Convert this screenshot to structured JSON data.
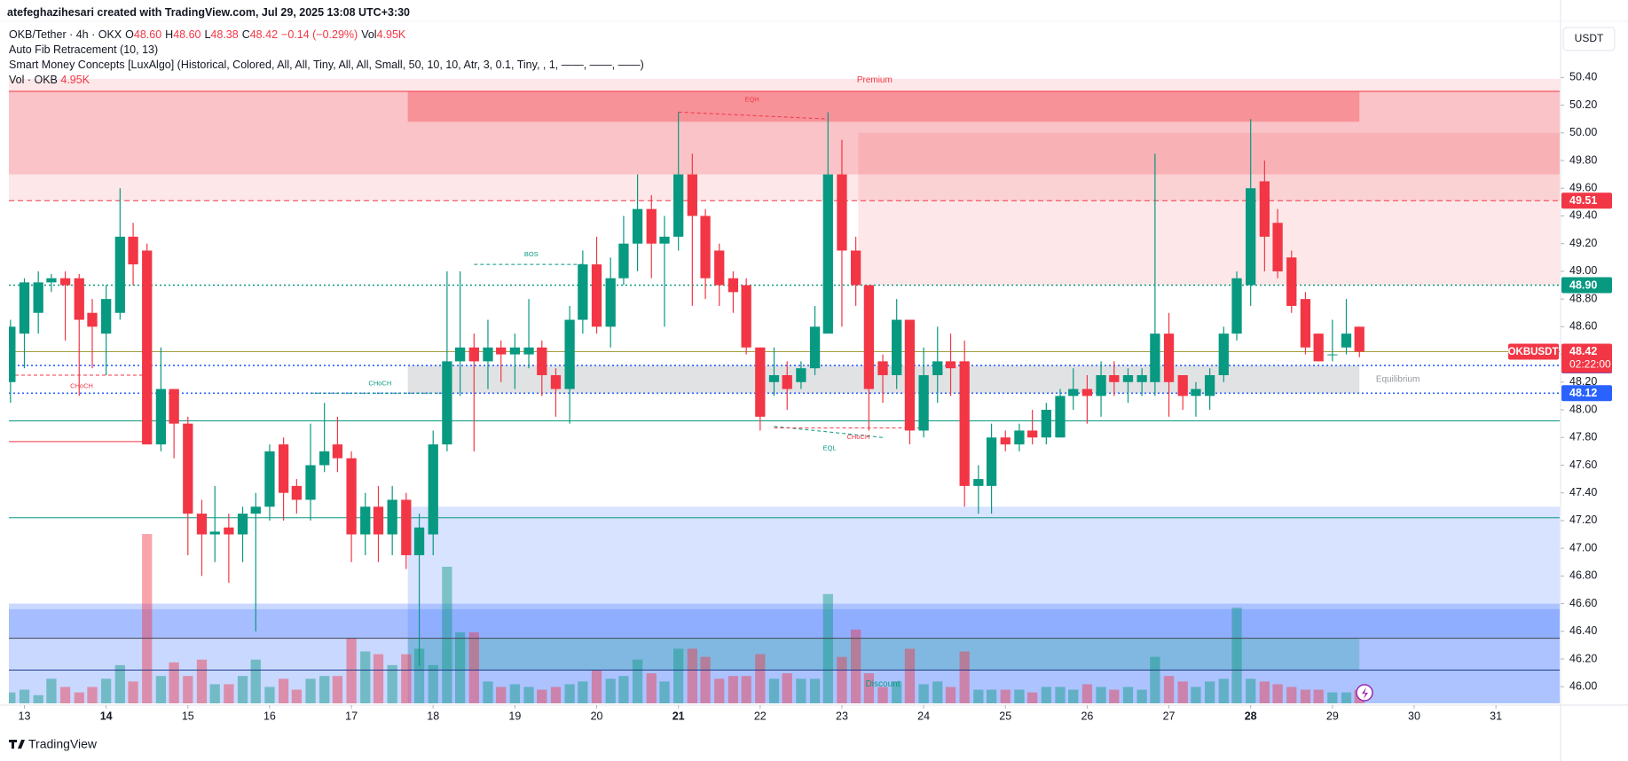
{
  "header": {
    "credit": "atefeghazihesari created with TradingView.com, Jul 29, 2025 13:08 UTC+3:30",
    "symbol": "OKB/Tether · 4h · OKX",
    "ohlc": [
      {
        "k": "O",
        "v": "48.60"
      },
      {
        "k": "H",
        "v": "48.60"
      },
      {
        "k": "L",
        "v": "48.38"
      },
      {
        "k": "C",
        "v": "48.42"
      }
    ],
    "change": "−0.14 (−0.29%)",
    "vol_key": "Vol",
    "vol": "4.95K",
    "indicators": [
      "Auto Fib Retracement (10, 13)",
      "Smart Money Concepts [LuxAlgo] (Historical, Colored, All, All, Tiny, All, All, Small, 50, 10, 10, Atr, 3, 0.1, Tiny, , 1, ——, ——, ——)"
    ],
    "volume_label": "Vol · OKB",
    "volume_value": "4.95K",
    "currency": "USDT",
    "brand": "TradingView"
  },
  "chart_data": {
    "type": "candlestick",
    "up_color": "#089981",
    "down_color": "#f23645",
    "grid": false,
    "xlim": [
      12.81,
      31.78
    ],
    "xticks": [
      13,
      14,
      15,
      16,
      17,
      18,
      19,
      20,
      21,
      22,
      23,
      24,
      25,
      26,
      27,
      28,
      29,
      30,
      31
    ],
    "ylim": [
      45.88,
      50.78
    ],
    "yticks": [
      {
        "value": 46,
        "label": "46.00"
      },
      {
        "value": 46.2,
        "label": "46.20"
      },
      {
        "value": 46.4,
        "label": "46.40"
      },
      {
        "value": 46.6,
        "label": "46.60"
      },
      {
        "value": 46.8,
        "label": "46.80"
      },
      {
        "value": 47,
        "label": "47.00"
      },
      {
        "value": 47.2,
        "label": "47.20"
      },
      {
        "value": 47.4,
        "label": "47.40"
      },
      {
        "value": 47.6,
        "label": "47.60"
      },
      {
        "value": 47.8,
        "label": "47.80"
      },
      {
        "value": 48,
        "label": "48.00"
      },
      {
        "value": 48.2,
        "label": "48.20"
      },
      {
        "value": 48.4,
        "label": "48.40"
      },
      {
        "value": 48.6,
        "label": "48.60"
      },
      {
        "value": 48.8,
        "label": "48.80"
      },
      {
        "value": 49,
        "label": "49.00"
      },
      {
        "value": 49.2,
        "label": "49.20"
      },
      {
        "value": 49.4,
        "label": "49.40"
      },
      {
        "value": 49.6,
        "label": "49.60"
      },
      {
        "value": 49.8,
        "label": "49.80"
      },
      {
        "value": 50,
        "label": "50.00"
      },
      {
        "value": 50.2,
        "label": "50.20"
      },
      {
        "value": 50.4,
        "label": "50.40"
      }
    ],
    "x": [
      12.83,
      13,
      13.17,
      13.33,
      13.5,
      13.67,
      13.83,
      14,
      14.17,
      14.33,
      14.5,
      14.67,
      14.83,
      15,
      15.17,
      15.33,
      15.5,
      15.67,
      15.83,
      16,
      16.17,
      16.33,
      16.5,
      16.67,
      16.83,
      17,
      17.17,
      17.33,
      17.5,
      17.67,
      17.83,
      18,
      18.17,
      18.33,
      18.5,
      18.67,
      18.83,
      19,
      19.17,
      19.33,
      19.5,
      19.67,
      19.83,
      20,
      20.17,
      20.33,
      20.5,
      20.67,
      20.83,
      21,
      21.17,
      21.33,
      21.5,
      21.67,
      21.83,
      22,
      22.17,
      22.33,
      22.5,
      22.67,
      22.83,
      23,
      23.17,
      23.33,
      23.5,
      23.67,
      23.83,
      24,
      24.17,
      24.33,
      24.5,
      24.67,
      24.83,
      25,
      25.17,
      25.33,
      25.5,
      25.67,
      25.83,
      26,
      26.17,
      26.33,
      26.5,
      26.67,
      26.83,
      27,
      27.17,
      27.33,
      27.5,
      27.67,
      27.83,
      28,
      28.17,
      28.33,
      28.5,
      28.67,
      28.83,
      29,
      29.17,
      29.33
    ],
    "open": [
      48.2,
      48.55,
      48.7,
      48.92,
      48.95,
      48.95,
      48.7,
      48.55,
      48.7,
      49.25,
      49.15,
      47.75,
      48.15,
      47.9,
      47.25,
      47.1,
      47.15,
      47.1,
      47.25,
      47.3,
      47.75,
      47.45,
      47.35,
      47.6,
      47.75,
      47.65,
      47.1,
      47.3,
      47.1,
      47.35,
      46.95,
      47.1,
      47.75,
      48.35,
      48.45,
      48.35,
      48.45,
      48.4,
      48.4,
      48.45,
      48.25,
      48.15,
      48.65,
      49.05,
      48.6,
      48.95,
      49.2,
      49.45,
      49.2,
      49.25,
      49.7,
      49.4,
      49.15,
      48.95,
      48.9,
      48.45,
      48.2,
      48.25,
      48.2,
      48.3,
      48.55,
      49.7,
      49.15,
      48.9,
      48.35,
      48.25,
      48.65,
      47.85,
      48.25,
      48.35,
      48.35,
      47.45,
      47.45,
      47.8,
      47.75,
      47.85,
      47.8,
      47.8,
      48.1,
      48.15,
      48.1,
      48.25,
      48.2,
      48.2,
      48.2,
      48.55,
      48.25,
      48.1,
      48.1,
      48.25,
      48.55,
      48.9,
      49.65,
      49.35,
      49.1,
      48.8,
      48.55,
      48.4,
      48.45,
      48.6
    ],
    "high": [
      48.65,
      48.95,
      49.0,
      48.98,
      49.0,
      48.98,
      48.8,
      48.9,
      49.6,
      49.35,
      49.2,
      48.45,
      48.15,
      47.95,
      47.35,
      47.45,
      47.25,
      47.3,
      47.4,
      47.75,
      47.8,
      47.5,
      47.9,
      48.05,
      47.95,
      47.7,
      47.4,
      47.45,
      47.45,
      47.4,
      47.25,
      47.85,
      49.0,
      49.0,
      48.55,
      48.65,
      48.5,
      48.55,
      48.8,
      48.5,
      48.3,
      48.75,
      49.15,
      49.25,
      49.1,
      49.4,
      49.7,
      49.55,
      49.4,
      50.15,
      49.85,
      49.45,
      49.2,
      49.0,
      48.95,
      48.45,
      48.45,
      48.35,
      48.35,
      48.75,
      50.15,
      49.95,
      49.25,
      48.9,
      48.4,
      48.8,
      48.65,
      48.45,
      48.6,
      48.55,
      48.5,
      47.6,
      47.9,
      47.85,
      47.9,
      48.0,
      48.05,
      48.15,
      48.3,
      48.25,
      48.35,
      48.35,
      48.3,
      48.3,
      49.85,
      48.7,
      48.25,
      48.2,
      48.3,
      48.6,
      49.0,
      50.1,
      49.8,
      49.45,
      49.15,
      48.85,
      48.55,
      48.65,
      48.8,
      48.6
    ],
    "low": [
      48.05,
      48.3,
      48.55,
      48.85,
      48.5,
      48.1,
      48.3,
      48.25,
      48.65,
      48.9,
      47.75,
      47.7,
      47.65,
      46.95,
      46.8,
      46.9,
      46.75,
      46.9,
      46.4,
      47.2,
      47.2,
      47.25,
      47.2,
      47.55,
      47.55,
      46.9,
      46.95,
      46.9,
      46.95,
      46.85,
      46.15,
      46.95,
      47.7,
      48.1,
      47.7,
      48.15,
      48.2,
      48.15,
      48.3,
      48.1,
      47.95,
      47.9,
      48.55,
      48.55,
      48.45,
      48.9,
      49.0,
      48.95,
      48.6,
      49.15,
      48.75,
      48.8,
      48.75,
      48.7,
      48.4,
      47.85,
      48.1,
      48.0,
      48.15,
      48.25,
      48.55,
      48.6,
      48.75,
      47.85,
      48.05,
      48.15,
      47.75,
      47.8,
      48.05,
      48.1,
      47.3,
      47.25,
      47.25,
      47.7,
      47.7,
      47.75,
      47.75,
      47.8,
      48.0,
      47.9,
      47.95,
      48.1,
      48.05,
      48.1,
      48.1,
      47.95,
      48.0,
      47.95,
      48.0,
      48.2,
      48.5,
      48.75,
      49.0,
      48.95,
      48.7,
      48.4,
      48.35,
      48.35,
      48.4,
      48.38
    ],
    "close": [
      48.6,
      48.92,
      48.92,
      48.95,
      48.9,
      48.65,
      48.6,
      48.8,
      49.25,
      49.05,
      47.75,
      48.15,
      47.9,
      47.25,
      47.1,
      47.12,
      47.1,
      47.25,
      47.3,
      47.7,
      47.4,
      47.35,
      47.6,
      47.7,
      47.65,
      47.1,
      47.3,
      47.1,
      47.35,
      46.95,
      47.15,
      47.75,
      48.35,
      48.45,
      48.35,
      48.45,
      48.4,
      48.45,
      48.45,
      48.25,
      48.15,
      48.65,
      49.05,
      48.6,
      48.95,
      49.2,
      49.45,
      49.2,
      49.25,
      49.7,
      49.4,
      48.95,
      48.9,
      48.85,
      48.45,
      47.95,
      48.25,
      48.15,
      48.3,
      48.6,
      49.7,
      49.15,
      48.9,
      48.15,
      48.25,
      48.65,
      47.85,
      48.25,
      48.35,
      48.3,
      47.45,
      47.5,
      47.8,
      47.75,
      47.85,
      47.8,
      48.0,
      48.1,
      48.15,
      48.1,
      48.25,
      48.2,
      48.25,
      48.25,
      48.55,
      48.2,
      48.1,
      48.15,
      48.25,
      48.55,
      48.95,
      49.6,
      49.25,
      49.0,
      48.75,
      48.45,
      48.35,
      48.4,
      48.55,
      48.42
    ],
    "volume": [
      4,
      5,
      3,
      9,
      6,
      4,
      6,
      9,
      14,
      8,
      62,
      10,
      15,
      10,
      16,
      7,
      7,
      10,
      16,
      6,
      9,
      5,
      9,
      10,
      10,
      24,
      19,
      18,
      14,
      18,
      20,
      14,
      50,
      26,
      26,
      8,
      6,
      7,
      6,
      5,
      6,
      7,
      8,
      12,
      9,
      10,
      16,
      11,
      8,
      20,
      20,
      17,
      9,
      10,
      10,
      18,
      9,
      11,
      9,
      9,
      40,
      17,
      27,
      11,
      6,
      8,
      20,
      7,
      8,
      6,
      19,
      5,
      5,
      5,
      5,
      4,
      6,
      6,
      5,
      7,
      6,
      5,
      6,
      5,
      17,
      10,
      8,
      6,
      8,
      9,
      35,
      9,
      8,
      7,
      6,
      5,
      5,
      4,
      4,
      4.95
    ],
    "zones": [
      {
        "x0": 12.81,
        "x1": 31.78,
        "top": 50.39,
        "bottom": 49.51,
        "color": "rgba(242,54,69,0.12)"
      },
      {
        "x0": 12.81,
        "x1": 31.78,
        "top": 50.3,
        "bottom": 49.7,
        "color": "rgba(242,54,69,0.2)"
      },
      {
        "x0": 17.69,
        "x1": 29.33,
        "top": 50.3,
        "bottom": 50.08,
        "color": "rgba(242,54,69,0.35)"
      },
      {
        "x0": 23.2,
        "x1": 31.78,
        "top": 50.0,
        "bottom": 48.9,
        "color": "rgba(242,54,69,0.12)"
      },
      {
        "x0": 17.69,
        "x1": 29.33,
        "top": 48.32,
        "bottom": 48.12,
        "color": "rgba(120,123,134,0.22)"
      },
      {
        "x0": 17.69,
        "x1": 31.78,
        "top": 47.3,
        "bottom": 45.88,
        "color": "rgba(41,98,255,0.18)"
      },
      {
        "x0": 12.81,
        "x1": 31.78,
        "top": 46.6,
        "bottom": 45.88,
        "color": "rgba(41,98,255,0.25)"
      },
      {
        "x0": 12.81,
        "x1": 31.78,
        "top": 46.56,
        "bottom": 46.35,
        "color": "rgba(41,98,255,0.22)"
      },
      {
        "x0": 17.69,
        "x1": 29.33,
        "top": 46.35,
        "bottom": 46.12,
        "color": "rgba(0,150,136,0.25)"
      }
    ],
    "levels": [
      {
        "value": 50.3,
        "color": "#f23645",
        "style": "solid"
      },
      {
        "value": 49.51,
        "color": "#f23645",
        "style": "dashed",
        "tag": true
      },
      {
        "value": 48.9,
        "label": "48.90",
        "color": "#089981",
        "style": "dotted",
        "tag": true
      },
      {
        "value": 48.32,
        "color": "#2962ff",
        "style": "dotted",
        "tag": true
      },
      {
        "value": 48.12,
        "color": "#2962ff",
        "style": "dotted",
        "tag": true
      },
      {
        "value": 47.92,
        "color": "#089981",
        "style": "solid"
      },
      {
        "value": 47.22,
        "color": "#089981",
        "style": "solid"
      },
      {
        "value": 46.35,
        "color": "#434651",
        "style": "solid"
      },
      {
        "value": 46.12,
        "color": "#1e3a8a",
        "style": "solid"
      }
    ],
    "last": {
      "value": 48.42,
      "symbol": "OKBUSDT",
      "countdown": "02:22:00",
      "color": "#f23645",
      "line_color": "#a39e3d"
    },
    "segments": [
      {
        "x0": 12.81,
        "x1": 14.5,
        "y0": 47.77,
        "y1": 47.77,
        "color": "#f23645",
        "dash": false
      },
      {
        "x0": 12.81,
        "x1": 14.5,
        "y0": 48.25,
        "y1": 48.25,
        "color": "#f23645",
        "dash": true
      },
      {
        "x0": 16.5,
        "x1": 18.17,
        "y0": 48.12,
        "y1": 48.12,
        "color": "#089981",
        "dash": true
      },
      {
        "x0": 18.5,
        "x1": 19.83,
        "y0": 49.05,
        "y1": 49.05,
        "color": "#089981",
        "dash": true
      },
      {
        "x0": 21.0,
        "x1": 22.83,
        "y0": 50.15,
        "y1": 50.1,
        "color": "#f23645",
        "dash": true
      },
      {
        "x0": 22.17,
        "x1": 23.5,
        "y0": 47.88,
        "y1": 47.8,
        "color": "#089981",
        "dash": true
      },
      {
        "x0": 22.17,
        "x1": 24.0,
        "y0": 47.87,
        "y1": 47.87,
        "color": "#f23645",
        "dash": true
      }
    ],
    "annotations": [
      {
        "text": "Premium",
        "x": 23.4,
        "y": 50.38,
        "color": "#f23645"
      },
      {
        "text": "EQH",
        "x": 21.9,
        "y": 50.24,
        "color": "#f23645"
      },
      {
        "text": "BOS",
        "x": 19.2,
        "y": 49.12,
        "color": "#089981"
      },
      {
        "text": "CHoCH",
        "x": 17.35,
        "y": 48.19,
        "color": "#089981"
      },
      {
        "text": "CHoCH",
        "x": 13.7,
        "y": 48.17,
        "color": "#f23645"
      },
      {
        "text": "EQL",
        "x": 22.85,
        "y": 47.72,
        "color": "#089981"
      },
      {
        "text": "CHoCH",
        "x": 23.2,
        "y": 47.8,
        "color": "#f23645"
      },
      {
        "text": "Equilibrium",
        "x": 29.8,
        "y": 48.22,
        "color": "#9598a1"
      },
      {
        "text": "Discount",
        "x": 23.5,
        "y": 46.02,
        "color": "#089981"
      }
    ]
  }
}
